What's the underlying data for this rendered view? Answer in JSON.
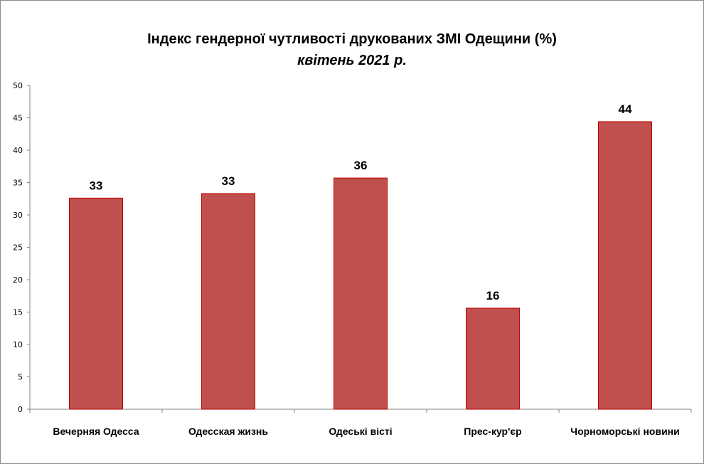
{
  "chart_data": {
    "type": "bar",
    "title": "Індекс гендерної чутливості друкованих ЗМІ Одещини (%)",
    "subtitle": "квітень 2021 р.",
    "categories": [
      "Вечерняя Одесса",
      "Одесская жизнь",
      "Одеські вісті",
      "Прес-кур'єр",
      "Чорноморські новини"
    ],
    "values": [
      32.6,
      33.3,
      35.7,
      15.6,
      44.4
    ],
    "data_labels": [
      "33",
      "33",
      "36",
      "16",
      "44"
    ],
    "xlabel": "",
    "ylabel": "",
    "ylim": [
      0,
      50
    ],
    "yticks": [
      "0",
      "5",
      "10",
      "15",
      "20",
      "25",
      "30",
      "35",
      "40",
      "45",
      "50"
    ],
    "grid": false,
    "legend": "none",
    "colors": {
      "bar_fill": "#C0504D",
      "bar_border": "#C00000",
      "axis": "#868686"
    }
  }
}
